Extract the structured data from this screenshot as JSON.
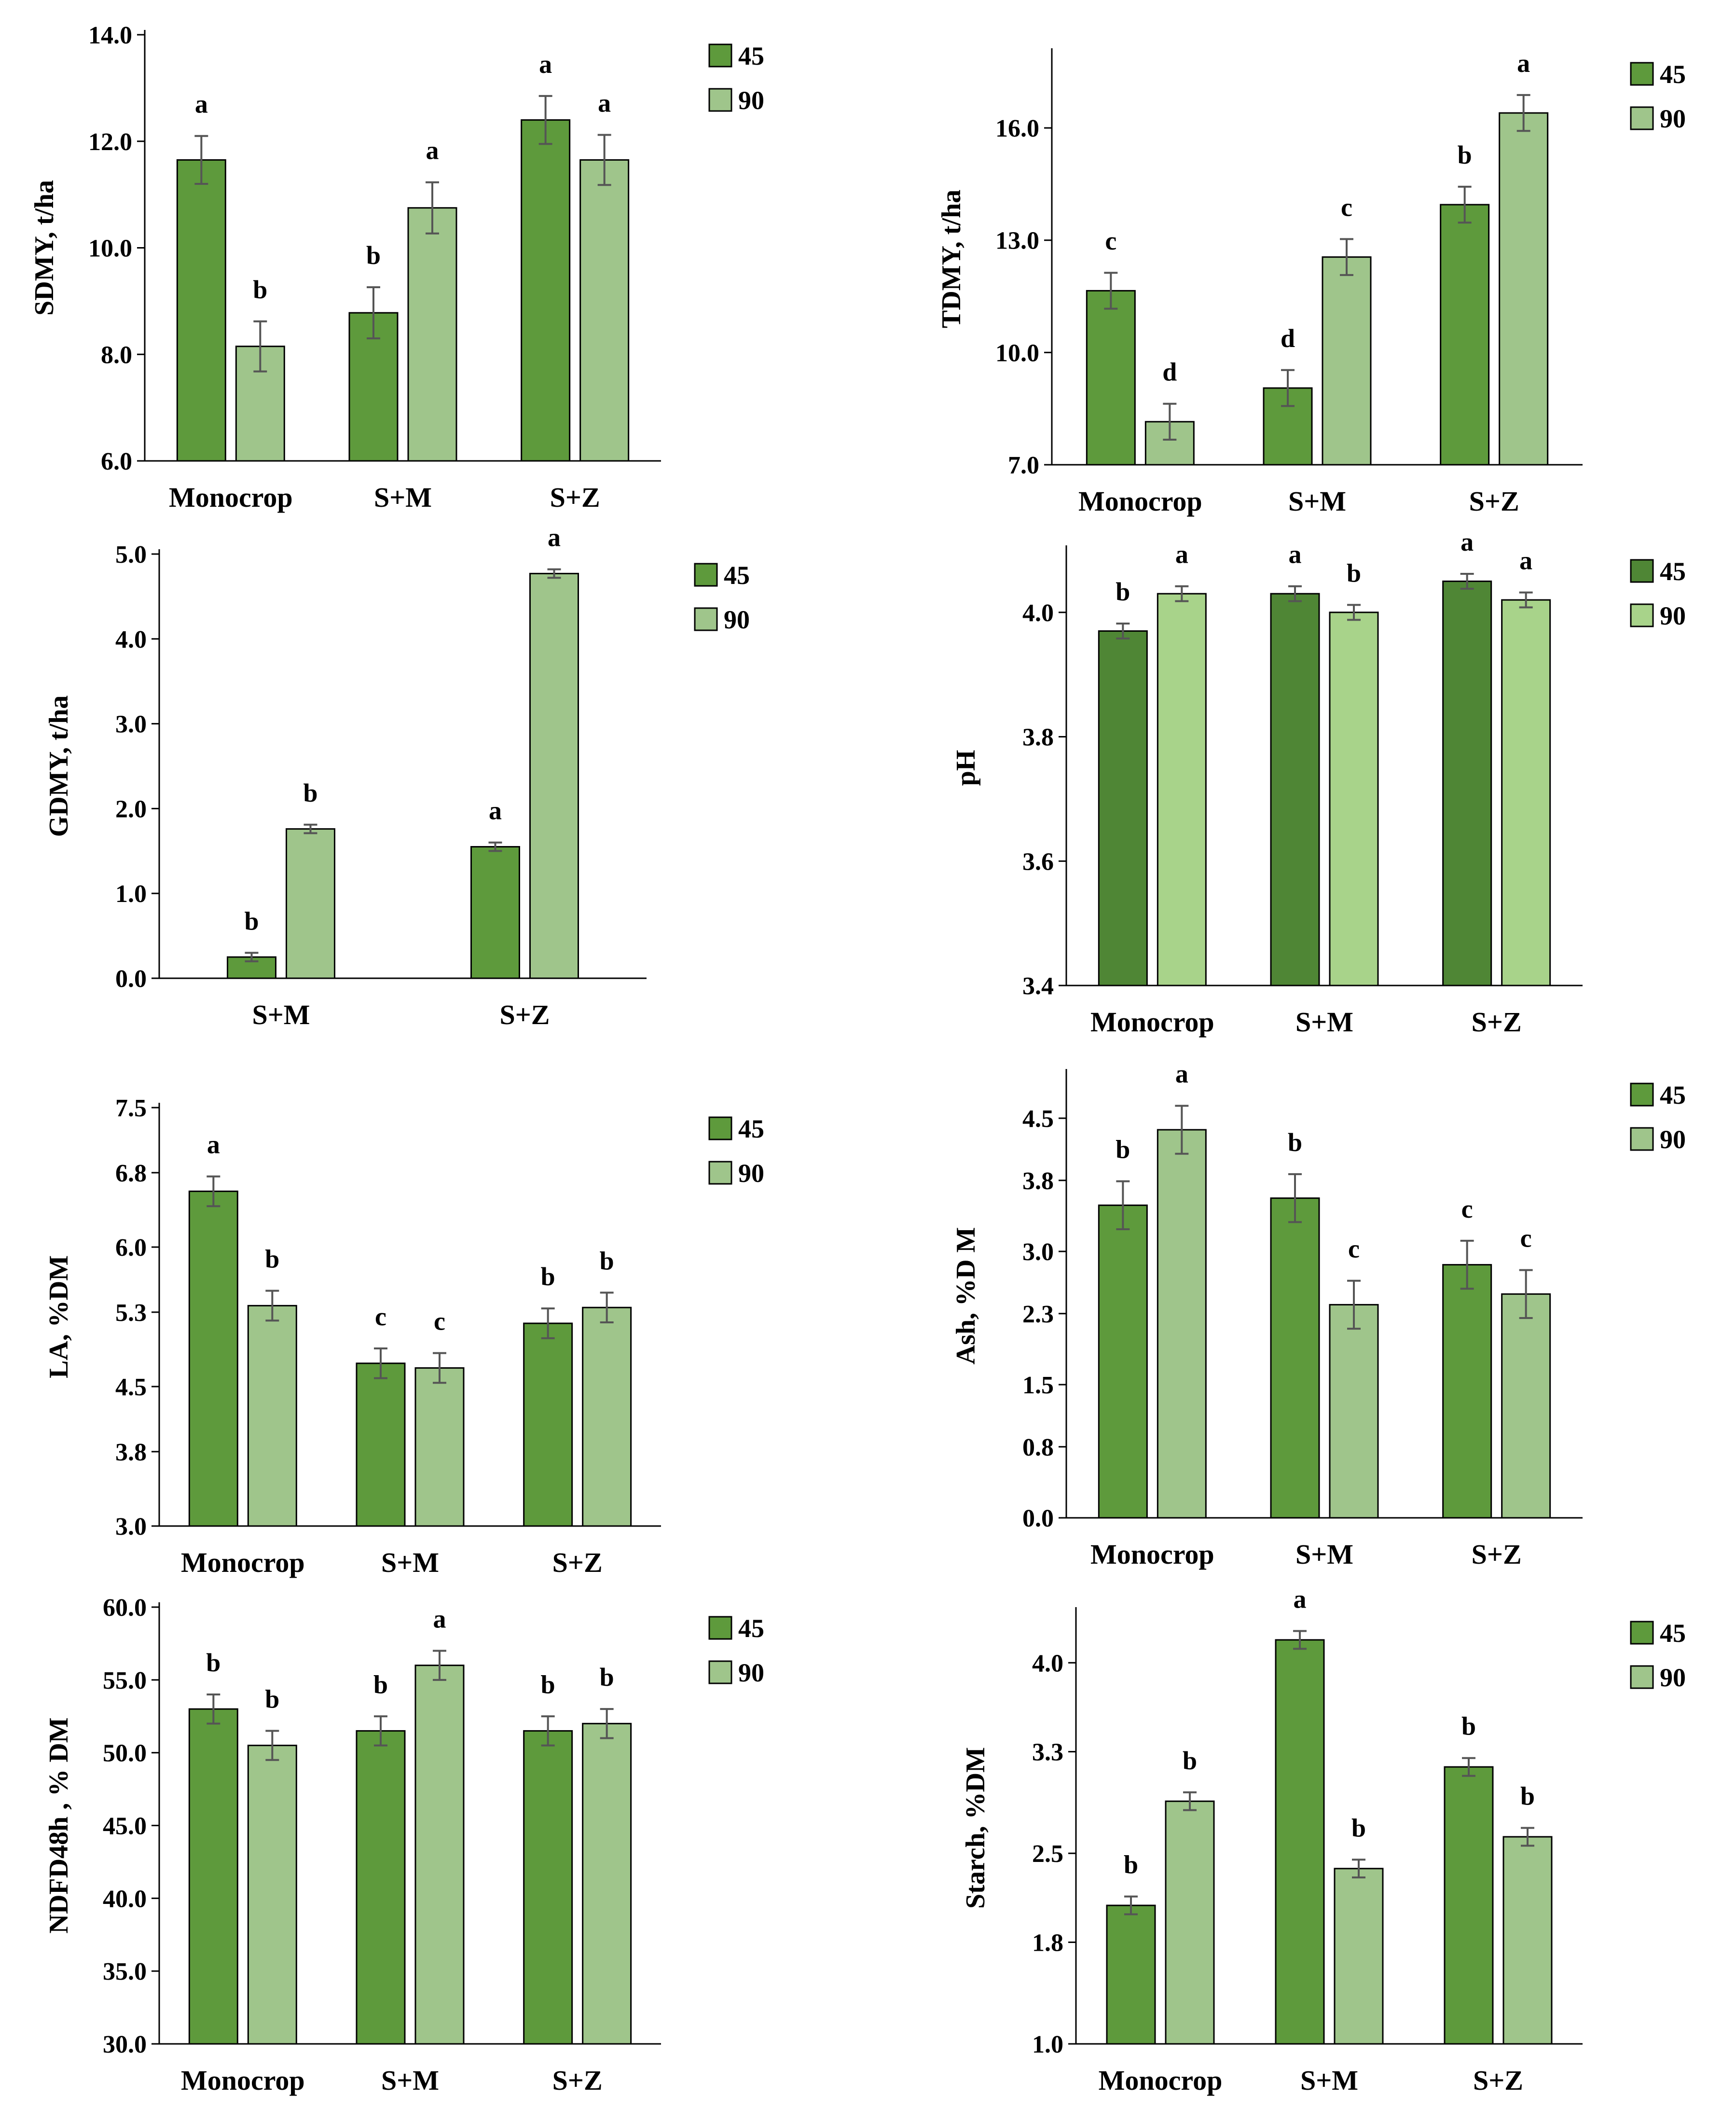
{
  "colors": {
    "s45": "#5e9a3c",
    "s90": "#9fc58b",
    "ph45": "#4f8635",
    "ph90": "#a8d38a",
    "bar_outline": "#000000",
    "error_bar": "#555555"
  },
  "chart_data": [
    {
      "type": "bar",
      "ylabel": "SDMY, t/ha",
      "categories": [
        "Monocrop",
        "S+M",
        "S+Z"
      ],
      "yticks": [
        "6.0",
        "8.0",
        "10.0",
        "12.0",
        "14.0"
      ],
      "ylim": [
        6,
        14
      ],
      "legend_position": "top-right",
      "series": [
        {
          "name": "45",
          "values": [
            11.65,
            8.78,
            12.4
          ],
          "errors": [
            0.45,
            0.48,
            0.45
          ],
          "letters": [
            "a",
            "b",
            "a"
          ]
        },
        {
          "name": "90",
          "values": [
            8.15,
            10.75,
            11.65
          ],
          "errors": [
            0.47,
            0.48,
            0.47
          ],
          "letters": [
            "b",
            "a",
            "a"
          ]
        }
      ]
    },
    {
      "type": "bar",
      "ylabel": "TDMY, t/ha",
      "categories": [
        "Monocrop",
        "S+M",
        "S+Z"
      ],
      "yticks": [
        "7.0",
        "10.0",
        "13.0",
        "16.0"
      ],
      "ylim": [
        7,
        18
      ],
      "legend_position": "top-right",
      "series": [
        {
          "name": "45",
          "values": [
            11.65,
            9.05,
            13.95
          ],
          "errors": [
            0.48,
            0.48,
            0.48
          ],
          "letters": [
            "c",
            "d",
            "b"
          ]
        },
        {
          "name": "90",
          "values": [
            8.15,
            12.55,
            16.4
          ],
          "errors": [
            0.48,
            0.48,
            0.48
          ],
          "letters": [
            "d",
            "c",
            "a"
          ]
        }
      ]
    },
    {
      "type": "bar",
      "ylabel": "GDMY, t/ha",
      "categories": [
        "S+M",
        "S+Z"
      ],
      "yticks": [
        "0.0",
        "1.0",
        "2.0",
        "3.0",
        "4.0",
        "5.0"
      ],
      "ylim": [
        0,
        5
      ],
      "legend_position": "top-right",
      "series": [
        {
          "name": "45",
          "values": [
            0.25,
            1.55
          ],
          "errors": [
            0.05,
            0.05
          ],
          "letters": [
            "b",
            "a"
          ]
        },
        {
          "name": "90",
          "values": [
            1.76,
            4.77
          ],
          "errors": [
            0.05,
            0.05
          ],
          "letters": [
            "b",
            "a"
          ]
        }
      ]
    },
    {
      "type": "bar",
      "ylabel": "pH",
      "categories": [
        "Monocrop",
        "S+M",
        "S+Z"
      ],
      "yticks": [
        "3.4",
        "3.6",
        "3.8",
        "4.0"
      ],
      "ylim": [
        3.4,
        4.1
      ],
      "legend_position": "top-right",
      "series": [
        {
          "name": "45",
          "values": [
            3.97,
            4.03,
            4.05
          ],
          "errors": [
            0.012,
            0.012,
            0.012
          ],
          "letters": [
            "b",
            "a",
            "a"
          ]
        },
        {
          "name": "90",
          "values": [
            4.03,
            4.0,
            4.02
          ],
          "errors": [
            0.012,
            0.012,
            0.012
          ],
          "letters": [
            "a",
            "b",
            "a"
          ]
        }
      ]
    },
    {
      "type": "bar",
      "ylabel": "LA, %DM",
      "categories": [
        "Monocrop",
        "S+M",
        "S+Z"
      ],
      "yticks": [
        "3.0",
        "3.8",
        "4.5",
        "5.3",
        "6.0",
        "6.8",
        "7.5"
      ],
      "ylim": [
        3.0,
        7.5
      ],
      "legend_position": "top-right",
      "series": [
        {
          "name": "45",
          "values": [
            6.6,
            4.75,
            5.18
          ],
          "errors": [
            0.16,
            0.16,
            0.16
          ],
          "letters": [
            "a",
            "c",
            "b"
          ]
        },
        {
          "name": "90",
          "values": [
            5.37,
            4.7,
            5.35
          ],
          "errors": [
            0.16,
            0.16,
            0.16
          ],
          "letters": [
            "b",
            "c",
            "b"
          ]
        }
      ]
    },
    {
      "type": "bar",
      "ylabel": "Ash, %D M",
      "categories": [
        "Monocrop",
        "S+M",
        "S+Z"
      ],
      "yticks": [
        "0.0",
        "0.8",
        "1.5",
        "2.3",
        "3.0",
        "3.8",
        "4.5"
      ],
      "ylim": [
        0,
        5.0
      ],
      "legend_position": "top-right",
      "series": [
        {
          "name": "45",
          "values": [
            3.52,
            3.6,
            2.85
          ],
          "errors": [
            0.27,
            0.27,
            0.27
          ],
          "letters": [
            "b",
            "b",
            "c"
          ]
        },
        {
          "name": "90",
          "values": [
            4.37,
            2.4,
            2.52
          ],
          "errors": [
            0.27,
            0.27,
            0.27
          ],
          "letters": [
            "a",
            "c",
            "c"
          ]
        }
      ]
    },
    {
      "type": "bar",
      "ylabel": "NDFD48h , % DM",
      "categories": [
        "Monocrop",
        "S+M",
        "S+Z"
      ],
      "yticks": [
        "30.0",
        "35.0",
        "40.0",
        "45.0",
        "50.0",
        "55.0",
        "60.0"
      ],
      "ylim": [
        30,
        60
      ],
      "legend_position": "top-right",
      "series": [
        {
          "name": "45",
          "values": [
            53.0,
            51.5,
            51.5
          ],
          "errors": [
            1.0,
            1.0,
            1.0
          ],
          "letters": [
            "b",
            "b",
            "b"
          ]
        },
        {
          "name": "90",
          "values": [
            50.5,
            56.0,
            52.0
          ],
          "errors": [
            1.0,
            1.0,
            1.0
          ],
          "letters": [
            "b",
            "a",
            "b"
          ]
        }
      ]
    },
    {
      "type": "bar",
      "ylabel": "Starch, %DM",
      "categories": [
        "Monocrop",
        "S+M",
        "S+Z"
      ],
      "yticks": [
        "1.0",
        "1.8",
        "2.5",
        "3.3",
        "4.0"
      ],
      "ylim": [
        1.0,
        4.4
      ],
      "legend_position": "top-right",
      "series": [
        {
          "name": "45",
          "values": [
            2.09,
            4.18,
            3.18
          ],
          "errors": [
            0.07,
            0.07,
            0.07
          ],
          "letters": [
            "b",
            "a",
            "b"
          ]
        },
        {
          "name": "90",
          "values": [
            2.91,
            2.38,
            2.63
          ],
          "errors": [
            0.07,
            0.07,
            0.07
          ],
          "letters": [
            "b",
            "b",
            "b"
          ]
        }
      ]
    }
  ]
}
